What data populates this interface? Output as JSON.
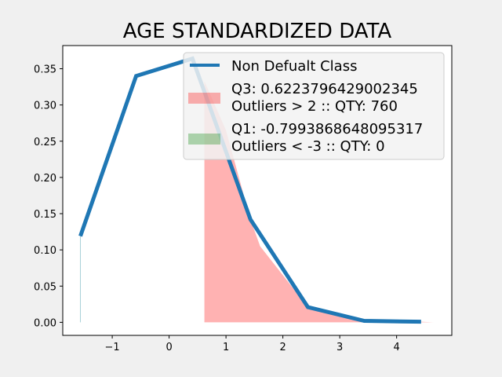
{
  "chart_data": {
    "type": "line",
    "title": "AGE STANDARDIZED DATA",
    "xlabel": "",
    "ylabel": "",
    "xlim": [
      -1.87,
      4.97
    ],
    "ylim": [
      -0.018,
      0.382
    ],
    "x_ticks": [
      -1,
      0,
      1,
      2,
      3,
      4
    ],
    "y_ticks": [
      0.0,
      0.05,
      0.1,
      0.15,
      0.2,
      0.25,
      0.3,
      0.35
    ],
    "grid": false,
    "legend_position": "top-right",
    "series": [
      {
        "name": "Non Defualt Class",
        "kind": "line",
        "color": "#1f77b4",
        "x": [
          -1.56,
          -0.58,
          0.41,
          1.43,
          2.44,
          3.43,
          4.43
        ],
        "y": [
          0.119,
          0.34,
          0.364,
          0.142,
          0.021,
          0.002,
          0.0008
        ]
      },
      {
        "name": "Q3: 0.6223796429002345\nOutliers > 2 :: QTY: 760",
        "label_lines": [
          "Q3: 0.6223796429002345",
          "Outliers > 2 :: QTY: 760"
        ],
        "kind": "fill",
        "color": "#ff0000",
        "alpha": 0.3,
        "x": [
          0.62,
          1.0,
          1.43,
          1.6,
          2.0,
          2.44,
          3.0,
          3.43,
          4.0,
          4.43,
          4.65
        ],
        "y": [
          0.333,
          0.265,
          0.142,
          0.105,
          0.065,
          0.021,
          0.01,
          0.002,
          0.001,
          0.0008,
          0.0
        ]
      },
      {
        "name": "Q1: -0.7993868648095317\nOutliers < -3 :: QTY: 0",
        "label_lines": [
          "Q1: -0.7993868648095317",
          "Outliers < -3 :: QTY: 0"
        ],
        "kind": "fill",
        "color": "#008000",
        "alpha": 0.3,
        "x": [],
        "y": []
      }
    ],
    "vertical_line": {
      "x": -1.56,
      "y_top": 0.119,
      "color": "#a8d0d8"
    }
  }
}
